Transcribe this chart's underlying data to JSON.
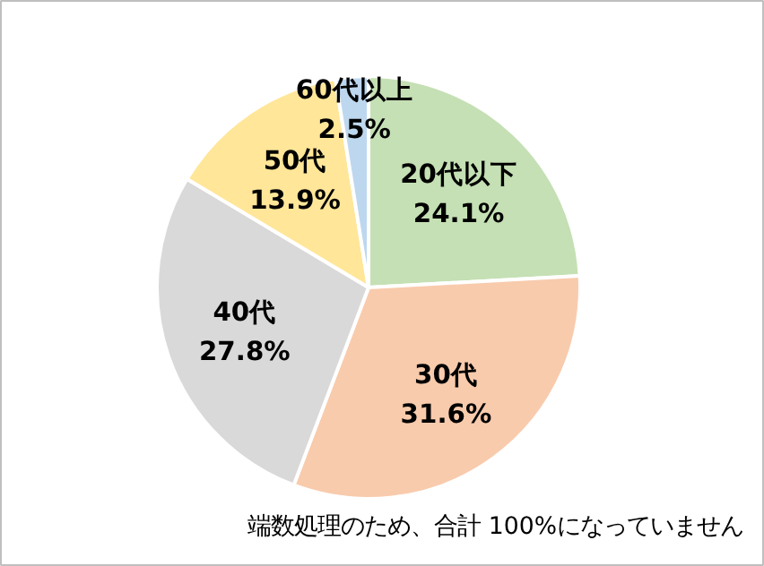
{
  "chart_data": {
    "type": "pie",
    "categories": [
      "20代以下",
      "30代",
      "40代",
      "50代",
      "60代以上"
    ],
    "values": [
      24.1,
      31.6,
      27.8,
      13.9,
      2.5
    ],
    "value_labels": [
      "24.1%",
      "31.6%",
      "27.8%",
      "13.9%",
      "2.5%"
    ],
    "colors": [
      "#c5e0b4",
      "#f8cbad",
      "#d9d9d9",
      "#ffe699",
      "#bdd7ee"
    ],
    "annotations": [
      "端数処理のため、合計 100%になっていません"
    ]
  }
}
